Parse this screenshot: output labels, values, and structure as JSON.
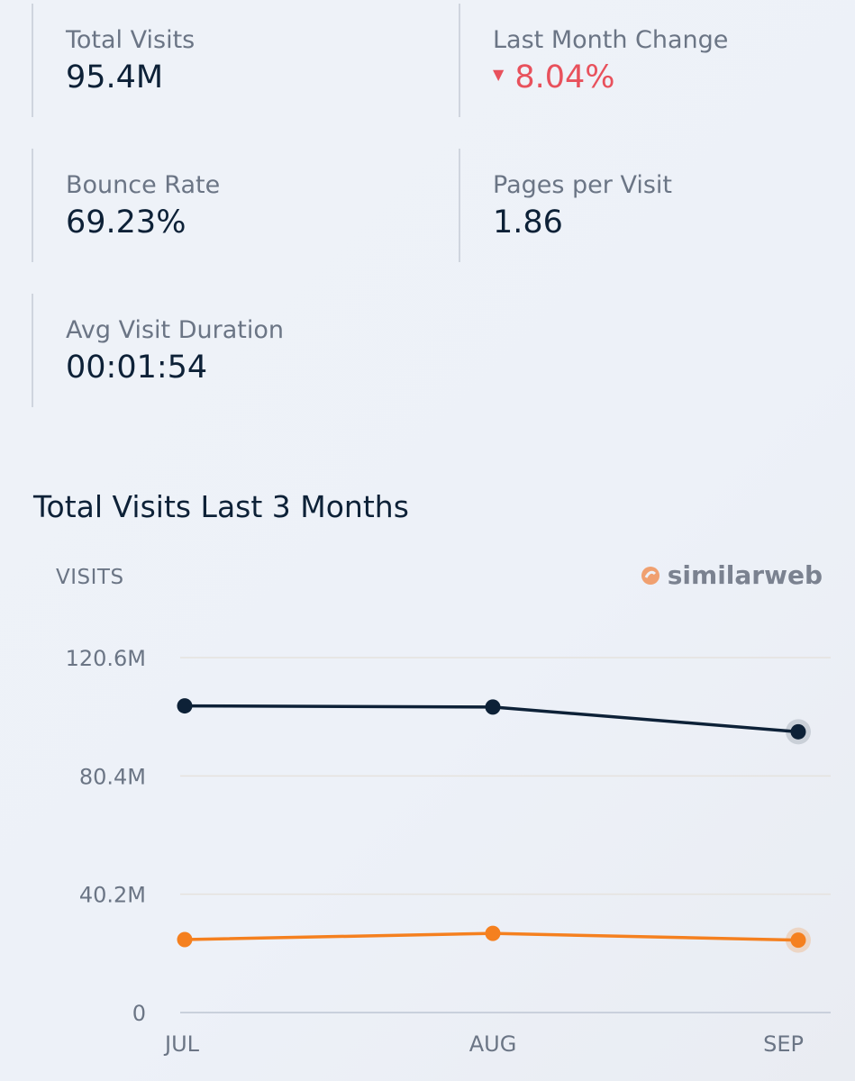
{
  "metrics": {
    "total_visits": {
      "label": "Total Visits",
      "value": "95.4M"
    },
    "last_month_change": {
      "label": "Last Month Change",
      "value": "8.04%",
      "direction": "down",
      "icon": "triangle-down-icon"
    },
    "bounce_rate": {
      "label": "Bounce Rate",
      "value": "69.23%"
    },
    "pages_per_visit": {
      "label": "Pages per Visit",
      "value": "1.86"
    },
    "avg_visit_duration": {
      "label": "Avg Visit Duration",
      "value": "00:01:54"
    }
  },
  "chart_section": {
    "title": "Total Visits Last 3 Months",
    "y_axis_label": "VISITS",
    "brand": "similarweb"
  },
  "colors": {
    "primary_series": "#0d2137",
    "secondary_series": "#f5801f",
    "negative": "#e8515c",
    "brand_logo": "#f0a070"
  },
  "chart_data": {
    "type": "line",
    "categories": [
      "JUL",
      "AUG",
      "SEP"
    ],
    "ylabel": "VISITS",
    "ylim": [
      0,
      120.6
    ],
    "yticks": [
      0,
      40.2,
      80.4,
      120.6
    ],
    "ytick_labels": [
      "0",
      "40.2M",
      "80.4M",
      "120.6M"
    ],
    "grid": true,
    "series": [
      {
        "values": [
          104.2,
          103.8,
          95.4
        ],
        "color": "#0d2137"
      },
      {
        "values": [
          24.8,
          26.9,
          24.6
        ],
        "color": "#f5801f"
      }
    ]
  }
}
